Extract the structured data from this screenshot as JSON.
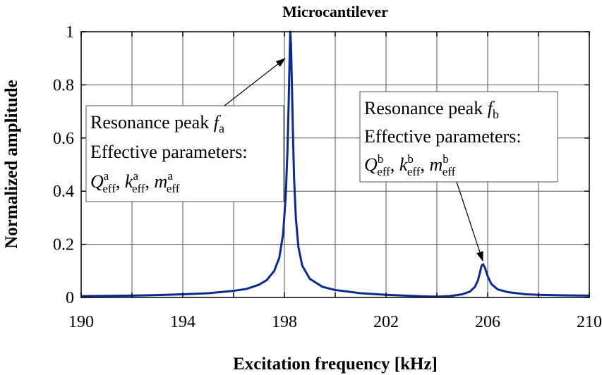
{
  "chart_data": {
    "type": "line",
    "title": "Microcantilever",
    "xlabel": "Excitation frequency [kHz]",
    "ylabel": "Normalized amplitude",
    "xlim": [
      190,
      210
    ],
    "ylim": [
      0,
      1
    ],
    "xticks": [
      190,
      194,
      198,
      202,
      206,
      210
    ],
    "yticks": [
      0,
      0.2,
      0.4,
      0.6,
      0.8,
      1
    ],
    "xtick_labels": [
      "190",
      "194",
      "198",
      "202",
      "206",
      "210"
    ],
    "ytick_labels": [
      "0",
      "0.2",
      "0.4",
      "0.6",
      "0.8",
      "1"
    ],
    "grid": true,
    "series": [
      {
        "name": "Normalized amplitude",
        "color": "#0c2a8a",
        "x": [
          190,
          191,
          192,
          193,
          194,
          195,
          196,
          196.5,
          197,
          197.3,
          197.6,
          197.8,
          197.95,
          198.05,
          198.12,
          198.17,
          198.2,
          198.23,
          198.26,
          198.3,
          198.34,
          198.38,
          198.45,
          198.55,
          198.7,
          199,
          199.5,
          200,
          201,
          202,
          203,
          203.5,
          204,
          204.5,
          205,
          205.3,
          205.5,
          205.62,
          205.7,
          205.76,
          205.82,
          205.9,
          206.0,
          206.15,
          206.4,
          206.8,
          207.5,
          208,
          209,
          210
        ],
        "y": [
          0.005,
          0.006,
          0.007,
          0.009,
          0.012,
          0.016,
          0.025,
          0.032,
          0.048,
          0.065,
          0.1,
          0.15,
          0.24,
          0.38,
          0.55,
          0.74,
          0.88,
          1.0,
          0.95,
          0.78,
          0.6,
          0.45,
          0.3,
          0.19,
          0.12,
          0.07,
          0.04,
          0.028,
          0.016,
          0.01,
          0.006,
          0.004,
          0.003,
          0.005,
          0.012,
          0.022,
          0.04,
          0.065,
          0.095,
          0.12,
          0.125,
          0.11,
          0.08,
          0.05,
          0.03,
          0.02,
          0.012,
          0.01,
          0.008,
          0.007
        ]
      }
    ],
    "annotations": [
      {
        "id": "a",
        "line1_prefix": "Resonance peak ",
        "line1_var": "f",
        "line1_sub": "a",
        "line2": "Effective parameters:",
        "params": [
          {
            "sym": "Q",
            "sup": "a",
            "sub": "eff"
          },
          {
            "sym": "k",
            "sup": "a",
            "sub": "eff"
          },
          {
            "sym": "m",
            "sup": "a",
            "sub": "eff"
          }
        ],
        "arrow_to": [
          198.2,
          0.9
        ]
      },
      {
        "id": "b",
        "line1_prefix": "Resonance peak ",
        "line1_var": "f",
        "line1_sub": "b",
        "line2": "Effective parameters:",
        "params": [
          {
            "sym": "Q",
            "sup": "b",
            "sub": "eff"
          },
          {
            "sym": "k",
            "sup": "b",
            "sub": "eff"
          },
          {
            "sym": "m",
            "sup": "b",
            "sub": "eff"
          }
        ],
        "arrow_to": [
          205.7,
          0.14
        ]
      }
    ]
  }
}
